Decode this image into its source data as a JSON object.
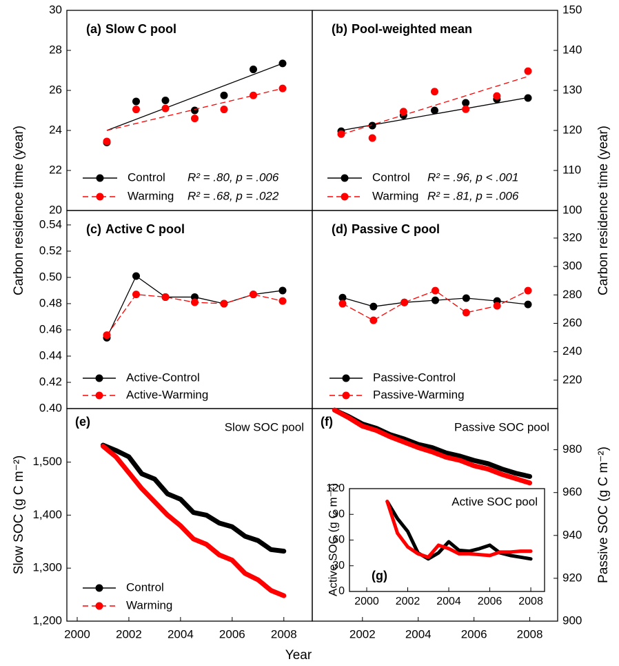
{
  "chart_data": [
    {
      "type": "scatter",
      "label": "(a)",
      "title": "Slow C pool",
      "ylabel": "Carbon residence time (year)",
      "categories": [
        null,
        null,
        null,
        null,
        null,
        null,
        null
      ],
      "ylim": [
        20,
        30
      ],
      "yticks": [
        20,
        22,
        24,
        26,
        28,
        30
      ],
      "legend": true,
      "series": [
        {
          "name": "Control",
          "color": "#000000",
          "dashed": false,
          "values": [
            23.4,
            25.45,
            25.5,
            25.0,
            25.75,
            27.05,
            27.35
          ],
          "fit": [
            24.0,
            27.35
          ],
          "stats": "R² = .80, p = .006"
        },
        {
          "name": "Warming",
          "color": "#ff0000",
          "dashed": true,
          "values": [
            23.45,
            25.05,
            25.1,
            24.6,
            25.05,
            25.75,
            26.1
          ],
          "fit": [
            24.0,
            26.1
          ],
          "stats": "R² = .68, p = .022"
        }
      ]
    },
    {
      "type": "scatter",
      "label": "(b)",
      "title": "Pool-weighted mean",
      "ylabel": "Carbon residence time (year)",
      "y_axis_side": "right",
      "categories": [
        null,
        null,
        null,
        null,
        null,
        null,
        null
      ],
      "ylim": [
        100,
        150
      ],
      "yticks": [
        100,
        110,
        120,
        130,
        140,
        150
      ],
      "legend": true,
      "series": [
        {
          "name": "Control",
          "color": "#000000",
          "dashed": false,
          "values": [
            119.8,
            121.2,
            123.8,
            125.0,
            126.9,
            127.8,
            128.1
          ],
          "fit": [
            120.0,
            128.2
          ],
          "stats": "R² = .96, p < .001"
        },
        {
          "name": "Warming",
          "color": "#ff0000",
          "dashed": true,
          "values": [
            119.1,
            118.1,
            124.7,
            129.7,
            125.3,
            128.6,
            134.8
          ],
          "fit": [
            119.0,
            133.5
          ],
          "stats": "R² = .81, p = .006"
        }
      ]
    },
    {
      "type": "line",
      "label": "(c)",
      "title": "Active C pool",
      "markers": true,
      "categories": [
        null,
        null,
        null,
        null,
        null,
        null,
        null
      ],
      "ylim": [
        0.4,
        0.551
      ],
      "yticks": [
        {
          "value": 0.4,
          "label": "0.40"
        },
        0.42,
        0.44,
        0.46,
        0.48,
        {
          "value": 0.5,
          "label": "0.50"
        },
        0.52,
        0.54
      ],
      "legend": true,
      "series": [
        {
          "name": "Active-Control",
          "color": "#000000",
          "dashed": false,
          "values": [
            0.454,
            0.501,
            0.485,
            0.485,
            0.48,
            0.487,
            0.49
          ]
        },
        {
          "name": "Active-Warming",
          "color": "#ff0000",
          "dashed": true,
          "values": [
            0.456,
            0.487,
            0.485,
            0.481,
            0.48,
            0.487,
            0.482
          ]
        }
      ]
    },
    {
      "type": "line",
      "label": "(d)",
      "title": "Passive C pool",
      "markers": true,
      "y_axis_side": "right",
      "categories": [
        null,
        null,
        null,
        null,
        null,
        null,
        null
      ],
      "ylim": [
        200,
        339.4
      ],
      "yticks": [
        220,
        240,
        260,
        280,
        300,
        320
      ],
      "legend": true,
      "series": [
        {
          "name": "Passive-Control",
          "color": "#000000",
          "dashed": false,
          "values": [
            278.1,
            271.8,
            274.7,
            276.2,
            277.7,
            275.7,
            273.3
          ]
        },
        {
          "name": "Passive-Warming",
          "color": "#ff0000",
          "dashed": true,
          "values": [
            273.8,
            262.1,
            274.7,
            283,
            267.5,
            272.3,
            283
          ]
        }
      ]
    },
    {
      "type": "line",
      "label": "(e)",
      "title": "Slow SOC pool",
      "ylabel": "Slow SOC (g C m⁻²)",
      "xlabel": "Year",
      "x": [
        2001,
        2001.5,
        2002,
        2002.5,
        2003,
        2003.5,
        2004,
        2004.5,
        2005,
        2005.5,
        2006,
        2006.5,
        2007,
        2007.5,
        2008
      ],
      "xlim": [
        1999.6,
        2009.1
      ],
      "xticks": [
        2000,
        2002,
        2004,
        2006,
        2008
      ],
      "ylim": [
        1200,
        1601
      ],
      "yticks": [
        {
          "value": 1200,
          "label": "1,200"
        },
        {
          "value": 1300,
          "label": "1,300"
        },
        {
          "value": 1400,
          "label": "1,400"
        },
        {
          "value": 1500,
          "label": "1,500"
        }
      ],
      "legend": true,
      "series": [
        {
          "name": "Control",
          "color": "#000000",
          "dashed": false,
          "values": [
            1532,
            1522,
            1510,
            1478,
            1468,
            1440,
            1430,
            1405,
            1400,
            1385,
            1378,
            1360,
            1352,
            1335,
            1332
          ]
        },
        {
          "name": "Warming",
          "color": "#ff0000",
          "dashed": true,
          "values": [
            1530,
            1510,
            1480,
            1450,
            1425,
            1400,
            1380,
            1355,
            1345,
            1325,
            1315,
            1290,
            1278,
            1258,
            1248
          ]
        }
      ]
    },
    {
      "type": "line",
      "label": "(f)",
      "title": "Passive SOC pool",
      "ylabel": "Passive SOC (g C m⁻²)",
      "y_axis_side": "right",
      "x": [
        2001,
        2001.5,
        2002,
        2002.5,
        2003,
        2003.5,
        2004,
        2004.5,
        2005,
        2005.5,
        2006,
        2006.5,
        2007,
        2007.5,
        2008
      ],
      "xlim": [
        2000.2,
        2009
      ],
      "xticks": [
        2002,
        2004,
        2006,
        2008
      ],
      "ylim": [
        900,
        999.2
      ],
      "yticks": [
        900,
        920,
        940,
        960,
        980
      ],
      "series": [
        {
          "color": "#000000",
          "values": [
            998.5,
            995.5,
            992,
            990,
            987,
            985,
            982.5,
            981,
            978.5,
            977,
            975,
            973.5,
            971,
            969,
            967.5
          ]
        },
        {
          "color": "#ff0000",
          "values": [
            998.5,
            995,
            991,
            989,
            986,
            983.5,
            981,
            979,
            976.5,
            975,
            972.5,
            971,
            968.5,
            966.5,
            964.5
          ]
        }
      ]
    },
    {
      "type": "line",
      "label": "(g)",
      "title": "Active SOC pool",
      "ylabel": "Active SOC (g C m⁻²)",
      "x": [
        2001,
        2001.5,
        2002,
        2002.5,
        2003,
        2003.5,
        2004,
        2004.5,
        2005,
        2005.5,
        2006,
        2006.5,
        2007,
        2007.5,
        2008
      ],
      "xlim": [
        1999.16,
        2008.67
      ],
      "xticks": [
        2000,
        2002,
        2004,
        2006,
        2008
      ],
      "ylim": [
        0,
        120
      ],
      "yticks": [
        0,
        30,
        60,
        90,
        120
      ],
      "series": [
        {
          "color": "#000000",
          "values": [
            105,
            85,
            70,
            45,
            38,
            45,
            58,
            48,
            47,
            50,
            54,
            45,
            42,
            40,
            38
          ]
        },
        {
          "color": "#ff0000",
          "values": [
            105,
            68,
            52,
            44,
            40,
            54,
            50,
            44,
            44,
            43,
            42,
            46,
            46,
            47,
            47
          ]
        }
      ]
    }
  ]
}
